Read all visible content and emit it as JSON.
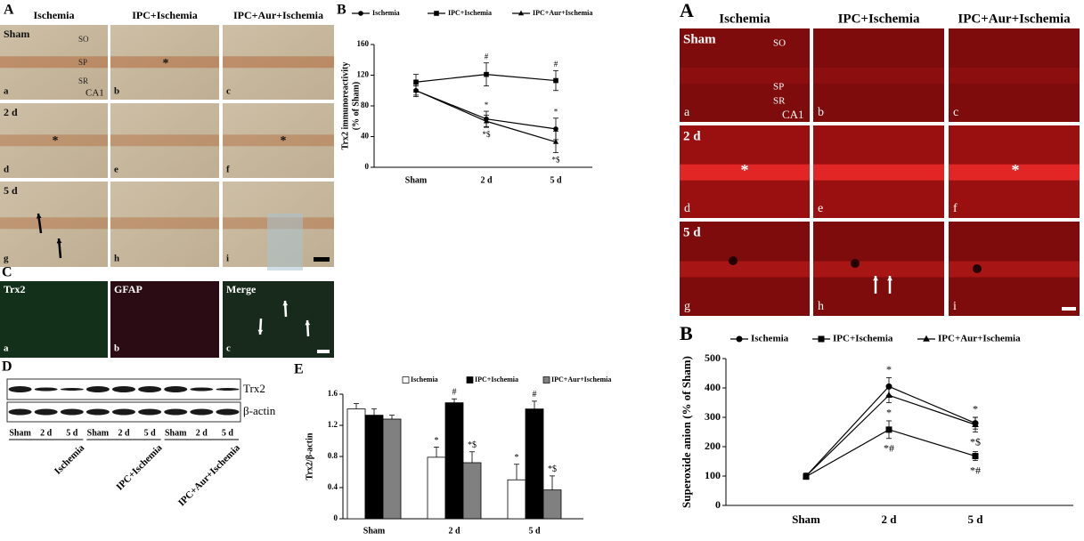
{
  "figure_left": {
    "panel_labels": [
      "A",
      "B",
      "C",
      "D",
      "E"
    ],
    "columns": [
      "Ischemia",
      "IPC+Ischemia",
      "IPC+Aur+Ischemia"
    ],
    "rows": [
      "Sham",
      "2 d",
      "5 d"
    ],
    "letters": [
      "a",
      "b",
      "c",
      "d",
      "e",
      "f",
      "g",
      "h",
      "i"
    ],
    "layers": [
      "SO",
      "SP",
      "SR"
    ],
    "region": "CA1",
    "asterisk": "*",
    "c_columns": [
      "Trx2",
      "GFAP",
      "Merge"
    ],
    "c_letters": [
      "a",
      "b",
      "c"
    ],
    "blot_bands": [
      "Trx2",
      "β-actin"
    ],
    "lanes": [
      "Sham",
      "2 d",
      "5 d"
    ],
    "groups": [
      "Ischemia",
      "IPC+Ischemia",
      "IPC+Aur+Ischemia"
    ]
  },
  "figure_right": {
    "panel_labels": [
      "A",
      "B"
    ],
    "columns": [
      "Ischemia",
      "IPC+Ischemia",
      "IPC+Aur+Ischemia"
    ],
    "rows": [
      "Sham",
      "2 d",
      "5 d"
    ],
    "letters": [
      "a",
      "b",
      "c",
      "d",
      "e",
      "f",
      "g",
      "h",
      "i"
    ],
    "layers": [
      "SO",
      "SP",
      "SR"
    ],
    "region": "CA1",
    "asterisk": "*"
  },
  "chart_data": [
    {
      "type": "line",
      "ylabel_lines": [
        "Trx2 immunoreactivity",
        "(% of Sham)"
      ],
      "categories": [
        "Sham",
        "2 d",
        "5 d"
      ],
      "ylim": [
        0,
        160
      ],
      "yticks": [
        0,
        40,
        80,
        120,
        160
      ],
      "series": [
        {
          "name": "Ischemia",
          "color": "#000",
          "marker": "circle",
          "values": [
            100,
            63,
            50
          ],
          "errors": [
            8,
            10,
            14
          ],
          "notes": [
            null,
            "*",
            "*"
          ],
          "note_side": "above"
        },
        {
          "name": "IPC+Ischemia",
          "color": "#000",
          "marker": "square",
          "values": [
            111,
            121,
            113
          ],
          "errors": [
            10,
            15,
            13
          ],
          "notes": [
            null,
            "#",
            "#"
          ],
          "note_side": "above"
        },
        {
          "name": "IPC+Aur+Ischemia",
          "color": "#000",
          "marker": "triangle",
          "values": [
            100,
            60,
            33
          ],
          "errors": [
            6,
            8,
            14
          ],
          "notes": [
            null,
            "*$",
            "*$"
          ],
          "note_side": "below"
        }
      ]
    },
    {
      "type": "bar",
      "ylabel_lines": [
        "Trx2/β-actin"
      ],
      "categories": [
        "Sham",
        "2 d",
        "5 d"
      ],
      "ylim": [
        0,
        1.6
      ],
      "yticks": [
        0,
        0.4,
        0.8,
        1.2,
        1.6
      ],
      "series": [
        {
          "name": "Ischemia",
          "color": "#ffffff",
          "values": [
            1.41,
            0.79,
            0.5
          ],
          "errors": [
            0.07,
            0.13,
            0.2
          ],
          "notes": [
            null,
            "*",
            "*"
          ]
        },
        {
          "name": "IPC+Ischemia",
          "color": "#000000",
          "values": [
            1.33,
            1.49,
            1.41
          ],
          "errors": [
            0.08,
            0.05,
            0.1
          ],
          "notes": [
            null,
            "#",
            "#"
          ]
        },
        {
          "name": "IPC+Aur+Ischemia",
          "color": "#808080",
          "values": [
            1.28,
            0.72,
            0.37
          ],
          "errors": [
            0.05,
            0.14,
            0.18
          ],
          "notes": [
            null,
            "*$",
            "*$"
          ]
        }
      ]
    },
    {
      "type": "line",
      "ylabel_lines": [
        "Superoxide anion (% of Sham)"
      ],
      "categories": [
        "Sham",
        "2 d",
        "5 d"
      ],
      "ylim": [
        0,
        500
      ],
      "yticks": [
        0,
        100,
        200,
        300,
        400,
        500
      ],
      "series": [
        {
          "name": "Ischemia",
          "color": "#000",
          "marker": "circle",
          "values": [
            100,
            405,
            280
          ],
          "errors": [
            10,
            30,
            20
          ],
          "notes": [
            null,
            "*",
            "*"
          ],
          "note_side": "above"
        },
        {
          "name": "IPC+Ischemia",
          "color": "#000",
          "marker": "square",
          "values": [
            98,
            258,
            168
          ],
          "errors": [
            5,
            30,
            15
          ],
          "notes": [
            null,
            "*#",
            "*#"
          ],
          "note_side": "below"
        },
        {
          "name": "IPC+Aur+Ischemia",
          "color": "#000",
          "marker": "triangle",
          "values": [
            100,
            375,
            275
          ],
          "errors": [
            8,
            25,
            25
          ],
          "notes": [
            null,
            "*",
            "*$"
          ],
          "note_side": "below"
        }
      ]
    }
  ]
}
